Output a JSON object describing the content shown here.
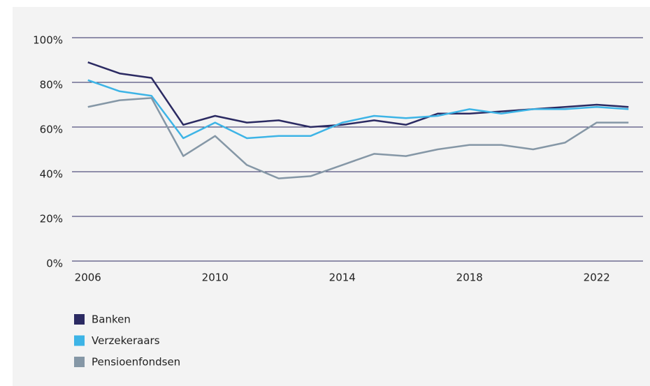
{
  "chart_data": {
    "type": "line",
    "x": [
      2006,
      2007,
      2008,
      2009,
      2010,
      2011,
      2012,
      2013,
      2014,
      2015,
      2016,
      2017,
      2018,
      2019,
      2020,
      2021,
      2022,
      2023
    ],
    "series": [
      {
        "name": "Banken",
        "color": "#2b2a62",
        "values": [
          89,
          84,
          82,
          61,
          65,
          62,
          63,
          60,
          61,
          63,
          61,
          66,
          66,
          67,
          68,
          69,
          70,
          69
        ]
      },
      {
        "name": "Verzekeraars",
        "color": "#3db4e6",
        "values": [
          81,
          76,
          74,
          55,
          62,
          55,
          56,
          56,
          62,
          65,
          64,
          65,
          68,
          66,
          68,
          68,
          69,
          68
        ]
      },
      {
        "name": "Pensioenfondsen",
        "color": "#8597a6",
        "values": [
          69,
          72,
          73,
          47,
          56,
          43,
          37,
          38,
          43,
          48,
          47,
          50,
          52,
          52,
          50,
          53,
          62,
          62
        ]
      }
    ],
    "xlim": [
      2005.5,
      2023.5
    ],
    "xticks": [
      2006,
      2010,
      2014,
      2018,
      2022
    ],
    "ylim": [
      0,
      100
    ],
    "yticks": [
      {
        "value": 0,
        "label": "0%"
      },
      {
        "value": 20,
        "label": "20%"
      },
      {
        "value": 40,
        "label": "40%"
      },
      {
        "value": 60,
        "label": "60%"
      },
      {
        "value": 80,
        "label": "80%"
      },
      {
        "value": 100,
        "label": "100%"
      }
    ],
    "grid": true,
    "legend": "bottom-left"
  }
}
